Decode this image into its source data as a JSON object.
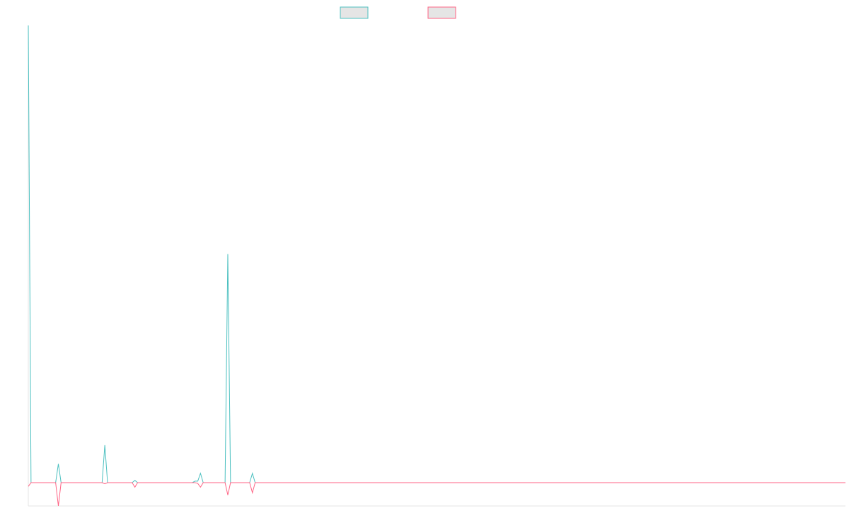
{
  "chart_data": {
    "type": "line",
    "title": "",
    "xlabel": "",
    "ylabel": "",
    "grid": false,
    "legend_position": "top-center",
    "ylim": [
      -7,
      127
    ],
    "x_count": 300,
    "series": [
      {
        "name": "",
        "color": "#4bc0c0",
        "fill": "#e5e5e5",
        "points": [
          [
            0,
            122
          ],
          [
            1,
            0
          ],
          [
            10,
            0
          ],
          [
            11,
            5
          ],
          [
            12,
            0
          ],
          [
            27,
            0
          ],
          [
            28,
            10
          ],
          [
            29,
            0
          ],
          [
            38,
            0
          ],
          [
            39,
            0.6
          ],
          [
            40,
            0
          ],
          [
            60,
            0
          ],
          [
            61,
            0.4
          ],
          [
            62,
            0.4
          ],
          [
            63,
            2.5
          ],
          [
            64,
            0
          ],
          [
            72,
            0
          ],
          [
            73,
            61
          ],
          [
            74,
            0
          ],
          [
            81,
            0
          ],
          [
            82,
            2.5
          ],
          [
            83,
            0
          ],
          [
            299,
            0
          ]
        ]
      },
      {
        "name": "",
        "color": "#ff6384",
        "fill": "#e5e5e5",
        "points": [
          [
            0,
            -1
          ],
          [
            1,
            0
          ],
          [
            10,
            0
          ],
          [
            11,
            -6.2
          ],
          [
            12,
            0
          ],
          [
            27,
            0
          ],
          [
            28,
            -0.3
          ],
          [
            29,
            0
          ],
          [
            38,
            0
          ],
          [
            39,
            -1.2
          ],
          [
            40,
            0
          ],
          [
            61,
            0
          ],
          [
            62,
            -0.2
          ],
          [
            63,
            -1.2
          ],
          [
            64,
            0
          ],
          [
            72,
            0
          ],
          [
            73,
            -3.3
          ],
          [
            74,
            0
          ],
          [
            81,
            0
          ],
          [
            82,
            -2.7
          ],
          [
            83,
            0
          ],
          [
            299,
            0
          ]
        ]
      }
    ]
  }
}
